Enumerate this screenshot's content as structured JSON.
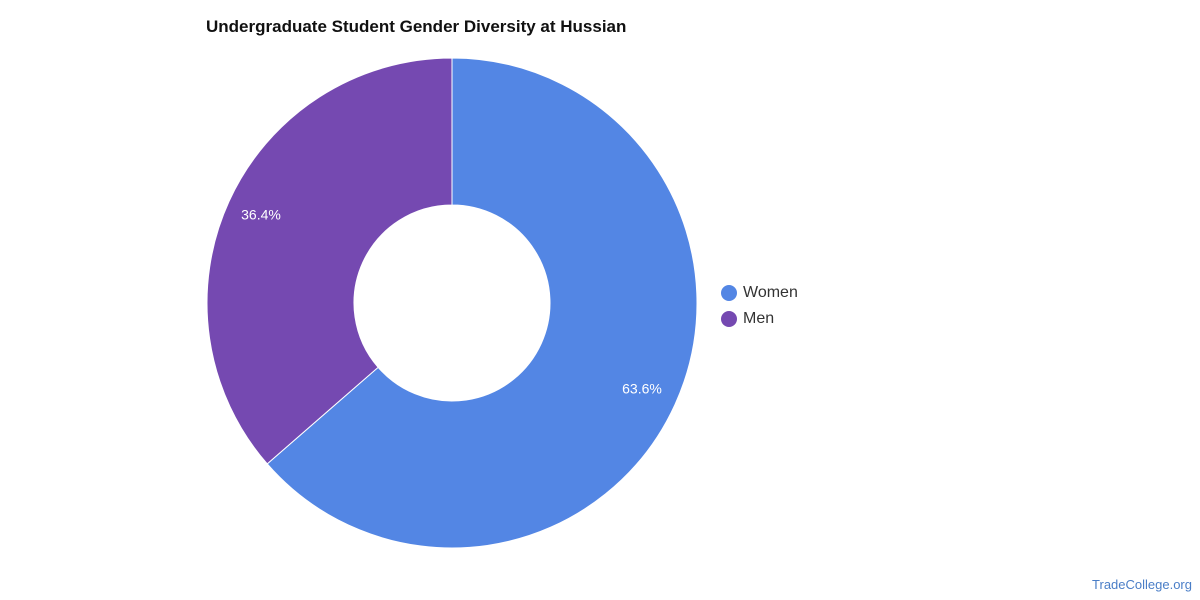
{
  "chart_data": {
    "type": "pie",
    "title": "Undergraduate Student Gender Diversity at Hussian",
    "donut": true,
    "categories": [
      "Women",
      "Men"
    ],
    "values": [
      63.6,
      36.4
    ],
    "labels": [
      "63.6%",
      "36.4%"
    ],
    "colors": [
      "#5386e4",
      "#7549b1"
    ],
    "legend_position": "right"
  },
  "watermark": "TradeCollege.org"
}
